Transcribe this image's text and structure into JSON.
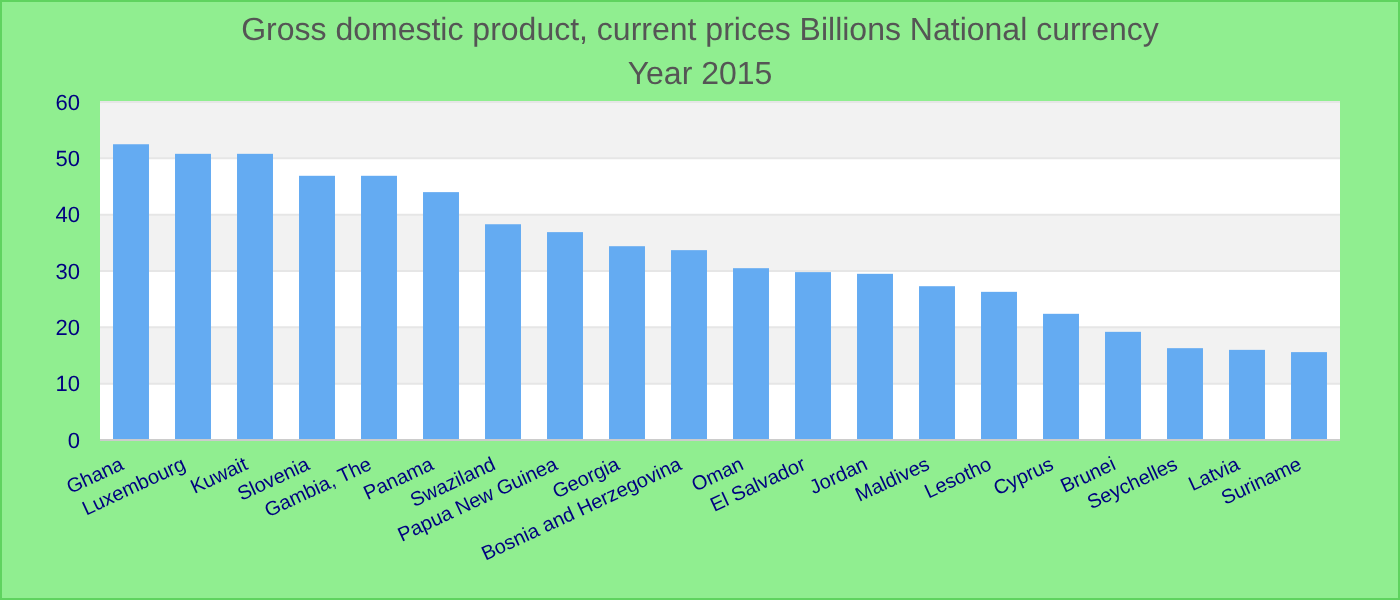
{
  "chart_data": {
    "type": "bar",
    "title": "Gross domestic product, current prices Billions National currency",
    "subtitle": "Year 2015",
    "categories": [
      "Ghana",
      "Luxembourg",
      "Kuwait",
      "Slovenia",
      "Gambia, The",
      "Panama",
      "Swaziland",
      "Papua New Guinea",
      "Georgia",
      "Bosnia and Herzegovina",
      "Oman",
      "El Salvador",
      "Jordan",
      "Maldives",
      "Lesotho",
      "Cyprus",
      "Brunei",
      "Seychelles",
      "Latvia",
      "Suriname"
    ],
    "values": [
      52.5,
      50.8,
      50.8,
      46.9,
      46.9,
      44.0,
      38.3,
      36.9,
      34.4,
      33.7,
      30.5,
      29.8,
      29.5,
      27.3,
      26.3,
      22.4,
      19.2,
      16.3,
      16.0,
      15.6
    ],
    "color": "#64abf2",
    "ylim": [
      0,
      60
    ],
    "yticks": [
      0,
      10,
      20,
      30,
      40,
      50,
      60
    ],
    "grid": "y"
  }
}
